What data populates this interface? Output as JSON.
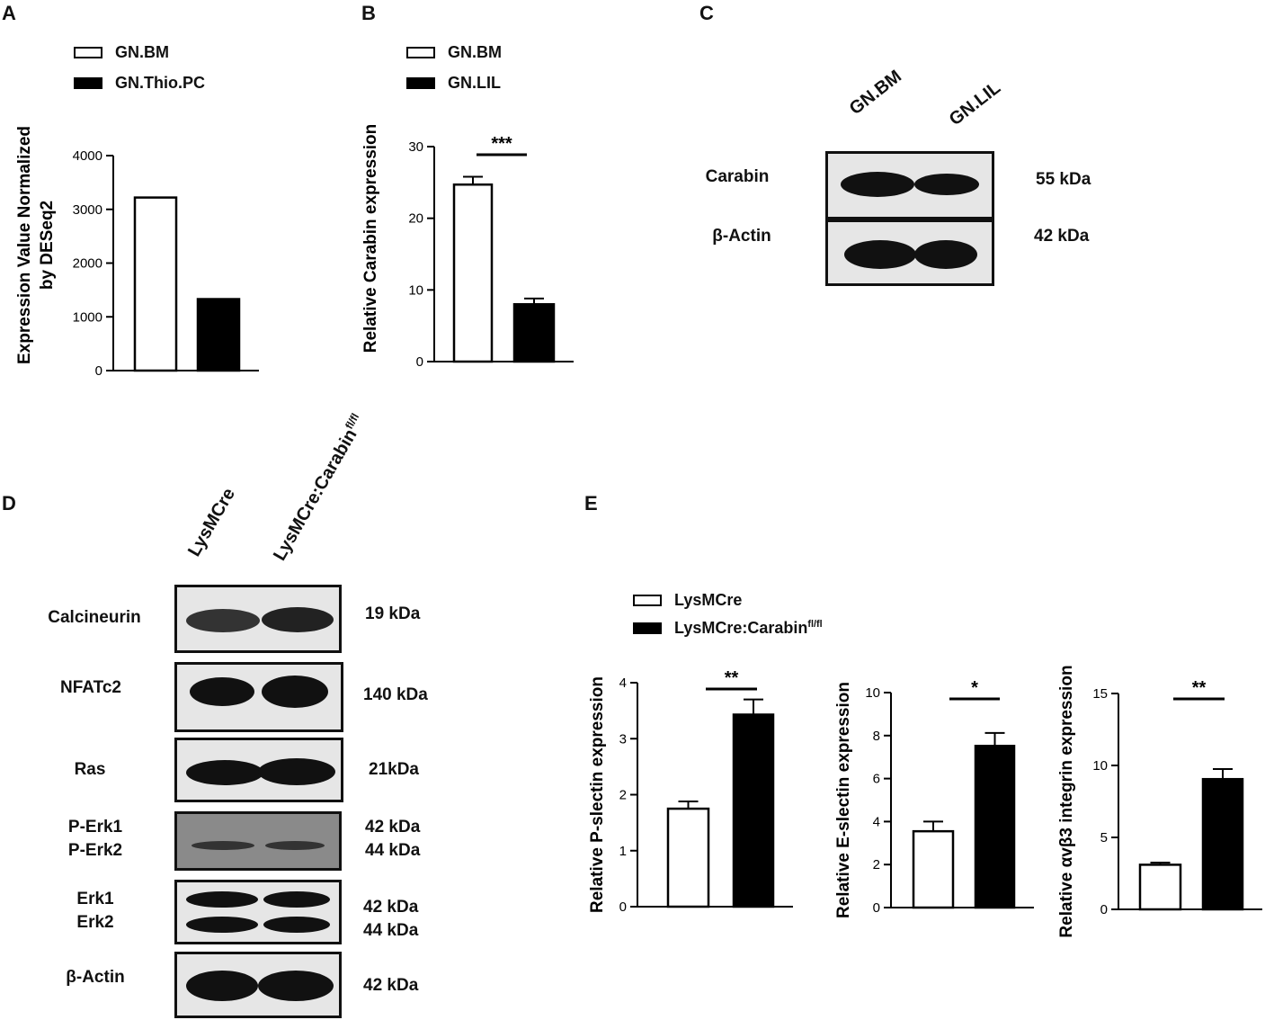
{
  "panel_letters": {
    "a": "A",
    "b": "B",
    "c": "C",
    "d": "D",
    "e": "E"
  },
  "panel_a": {
    "legend": [
      "GN.BM",
      "GN.Thio.PC"
    ],
    "ylabel_line1": "Expression Value Normalized",
    "ylabel_line2": "by DESeq2"
  },
  "panel_b": {
    "legend": [
      "GN.BM",
      "GN.LIL"
    ],
    "ylabel": "Relative Carabin expression",
    "significance": "***"
  },
  "panel_c": {
    "lanes": [
      "GN.BM",
      "GN.LIL"
    ],
    "rows": [
      {
        "label": "Carabin",
        "kda": "55 kDa"
      },
      {
        "label": "β-Actin",
        "kda": "42 kDa"
      }
    ]
  },
  "panel_d": {
    "lanes": [
      "LysMCre",
      "LysMCre:Carabin",
      "fl/fl"
    ],
    "rows": [
      {
        "label": "Calcineurin",
        "kda": "19 kDa"
      },
      {
        "label": "NFATc2",
        "kda": "140 kDa"
      },
      {
        "label": "Ras",
        "kda": "21kDa"
      },
      {
        "label": "P-Erk1\nP-Erk2",
        "kda": "42 kDa\n44 kDa"
      },
      {
        "label": "Erk1\nErk2",
        "kda": "42 kDa\n44 kDa"
      },
      {
        "label": "β-Actin",
        "kda": "42 kDa"
      }
    ]
  },
  "panel_e": {
    "legend": [
      "LysMCre",
      "LysMCre:Carabin",
      "fl/fl"
    ]
  },
  "colors": {
    "open_bar": "#ffffff",
    "filled_bar": "#000000",
    "axis": "#000000",
    "blot_bg": "#e6e6e6",
    "band": "#111111"
  },
  "chart_data": [
    {
      "id": "A",
      "type": "bar",
      "categories": [
        "GN.BM",
        "GN.Thio.PC"
      ],
      "values": [
        3220,
        1330
      ],
      "ylabel": "Expression Value Normalized by DESeq2",
      "ylim": [
        0,
        4000
      ],
      "yticks": [
        0,
        1000,
        2000,
        3000,
        4000
      ]
    },
    {
      "id": "B",
      "type": "bar",
      "categories": [
        "GN.BM",
        "GN.LIL"
      ],
      "values": [
        24.7,
        8.0
      ],
      "errors": [
        1.1,
        0.8
      ],
      "ylabel": "Relative Carabin expression",
      "ylim": [
        0,
        30
      ],
      "yticks": [
        0,
        10,
        20,
        30
      ],
      "significance": "***"
    },
    {
      "id": "E1",
      "type": "bar",
      "categories": [
        "LysMCre",
        "LysMCre:Carabin fl/fl"
      ],
      "values": [
        1.75,
        3.43
      ],
      "errors": [
        0.13,
        0.27
      ],
      "ylabel": "Relative P-slectin expression",
      "ylim": [
        0,
        4
      ],
      "yticks": [
        0,
        1,
        2,
        3,
        4
      ],
      "significance": "**"
    },
    {
      "id": "E2",
      "type": "bar",
      "categories": [
        "LysMCre",
        "LysMCre:Carabin fl/fl"
      ],
      "values": [
        3.55,
        7.52
      ],
      "errors": [
        0.45,
        0.6
      ],
      "ylabel": "Relative E-slectin expression",
      "ylim": [
        0,
        10
      ],
      "yticks": [
        0,
        2,
        4,
        6,
        8,
        10
      ],
      "significance": "*"
    },
    {
      "id": "E3",
      "type": "bar",
      "categories": [
        "LysMCre",
        "LysMCre:Carabin fl/fl"
      ],
      "values": [
        3.1,
        9.05
      ],
      "errors": [
        0.15,
        0.7
      ],
      "ylabel": "Relative αvβ3 integrin expression",
      "ylim": [
        0,
        15
      ],
      "yticks": [
        0,
        5,
        10,
        15
      ],
      "significance": "**"
    }
  ]
}
